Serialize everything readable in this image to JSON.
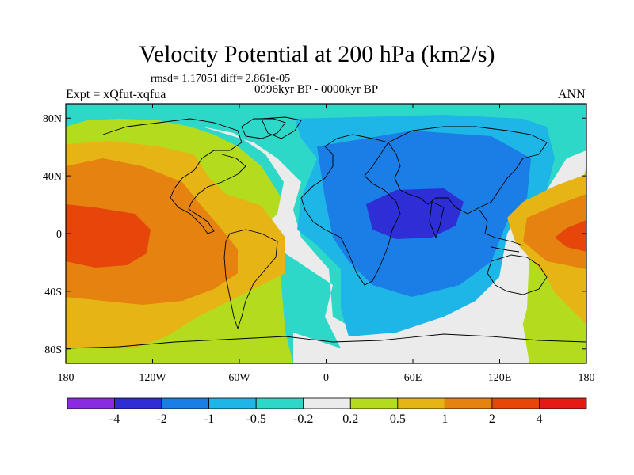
{
  "figure": {
    "title": "Velocity Potential at 200 hPa (km2/s)",
    "stats": "rmsd= 1.17051 diff= 2.861e-05",
    "period": "0996kyr BP - 0000kyr BP",
    "left_label": "Expt = xQfut-xqfua",
    "right_label": "ANN"
  },
  "map": {
    "projection": "cylindrical equidistant",
    "lon_range": [
      -180,
      180
    ],
    "lat_range": [
      -90,
      90
    ],
    "lat_ticks": [
      {
        "label": "80N",
        "lat": 80
      },
      {
        "label": "40N",
        "lat": 40
      },
      {
        "label": "0",
        "lat": 0
      },
      {
        "label": "40S",
        "lat": -40
      },
      {
        "label": "80S",
        "lat": -80
      }
    ],
    "lon_ticks": [
      {
        "label": "180",
        "lon": -180
      },
      {
        "label": "120W",
        "lon": -120
      },
      {
        "label": "60W",
        "lon": -60
      },
      {
        "label": "0",
        "lon": 0
      },
      {
        "label": "60E",
        "lon": 60
      },
      {
        "label": "120E",
        "lon": 120
      },
      {
        "label": "180",
        "lon": 180
      }
    ]
  },
  "colorbar": {
    "colors": [
      "#8a2be2",
      "#2e2ed6",
      "#1a7ee6",
      "#1eb6e6",
      "#2ed8c8",
      "#ebebeb",
      "#b4dc1e",
      "#e6b414",
      "#e6820f",
      "#e6460a",
      "#e61a14"
    ],
    "labels": [
      "-4",
      "-2",
      "-1",
      "-0.5",
      "-0.2",
      "0.2",
      "0.5",
      "1",
      "2",
      "4"
    ]
  },
  "colors": {
    "neg_strong": "#2e2ed6",
    "neg_mid": "#1a7ee6",
    "neg_weak": "#1eb6e6",
    "neg_faint": "#2ed8c8",
    "neutral": "#ebebeb",
    "pos_faint": "#b4dc1e",
    "pos_weak": "#e6b414",
    "pos_mid": "#e6820f",
    "pos_strong": "#e6460a"
  }
}
